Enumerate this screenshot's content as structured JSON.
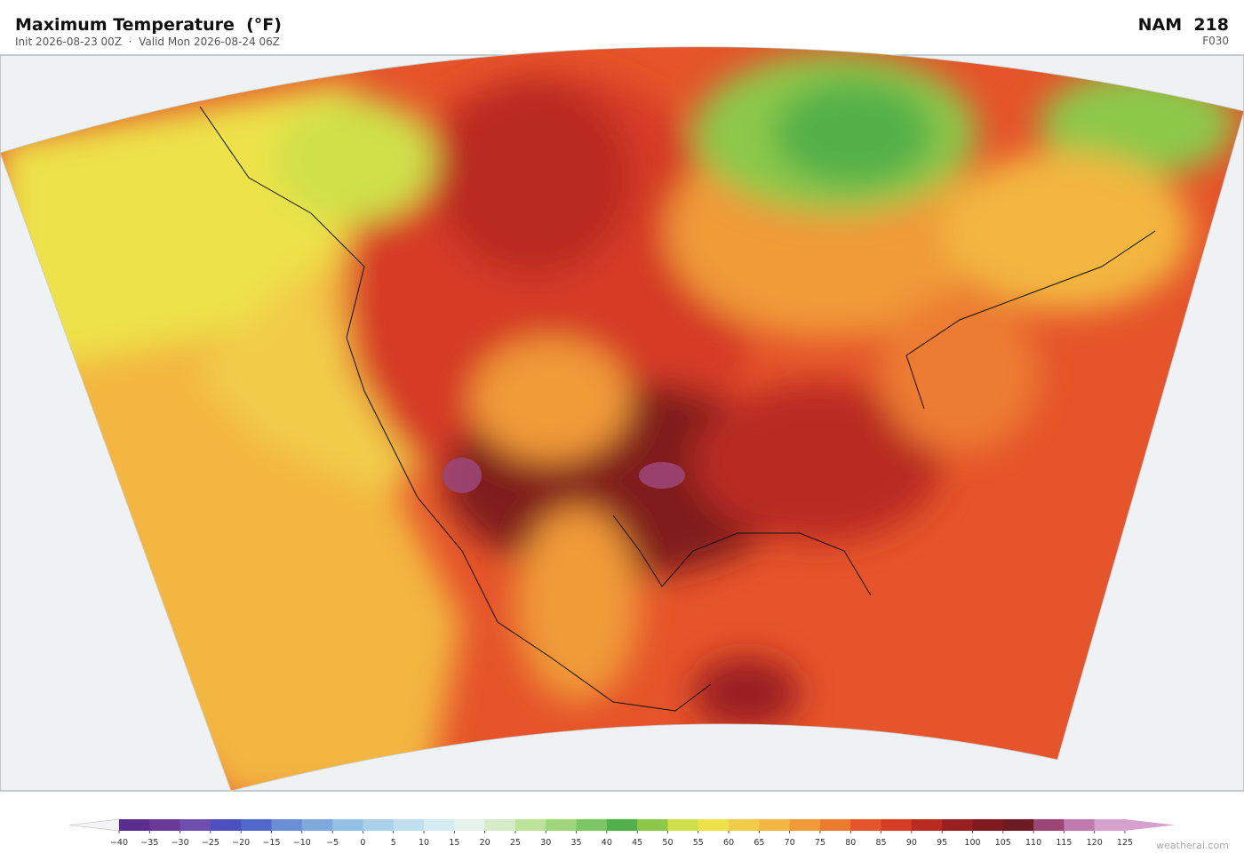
{
  "header": {
    "title": "Maximum Temperature  (°F)",
    "subtitle": "Init 2026-08-23 00Z  ·  Valid Mon 2026-08-24 06Z",
    "model": "NAM  218",
    "forecast_hour": "F030"
  },
  "colorbar": {
    "ticks": [
      {
        "value": -40,
        "label": "−40"
      },
      {
        "value": -35,
        "label": "−35"
      },
      {
        "value": -30,
        "label": "−30"
      },
      {
        "value": -25,
        "label": "−25"
      },
      {
        "value": -20,
        "label": "−20"
      },
      {
        "value": -15,
        "label": "−15"
      },
      {
        "value": -10,
        "label": "−10"
      },
      {
        "value": -5,
        "label": "−5"
      },
      0,
      5,
      10,
      15,
      20,
      25,
      30,
      35,
      40,
      45,
      50,
      55,
      60,
      65,
      70,
      75,
      80,
      85,
      90,
      95,
      100,
      105,
      110,
      115,
      120,
      125
    ],
    "colors": [
      "#5b2d8e",
      "#6a3a9b",
      "#6e4fb0",
      "#4b4fc0",
      "#5068cc",
      "#6a8ed6",
      "#7fa9dc",
      "#93c0e4",
      "#a9d2ea",
      "#c0e0ef",
      "#d5ecf2",
      "#e5f3ec",
      "#d6ecc6",
      "#bde29b",
      "#9fd57d",
      "#7cc665",
      "#52b04a",
      "#8dc84a",
      "#cfe04a",
      "#ede24a",
      "#f2cc48",
      "#f3b640",
      "#f09a38",
      "#ec7b30",
      "#e5542a",
      "#d63b26",
      "#b92a22",
      "#9a1f20",
      "#801a1e",
      "#6e1a22",
      "#9b4675",
      "#c07ab0",
      "#d4a2cc"
    ]
  },
  "footer": {
    "watermark": "weatherai.com"
  }
}
